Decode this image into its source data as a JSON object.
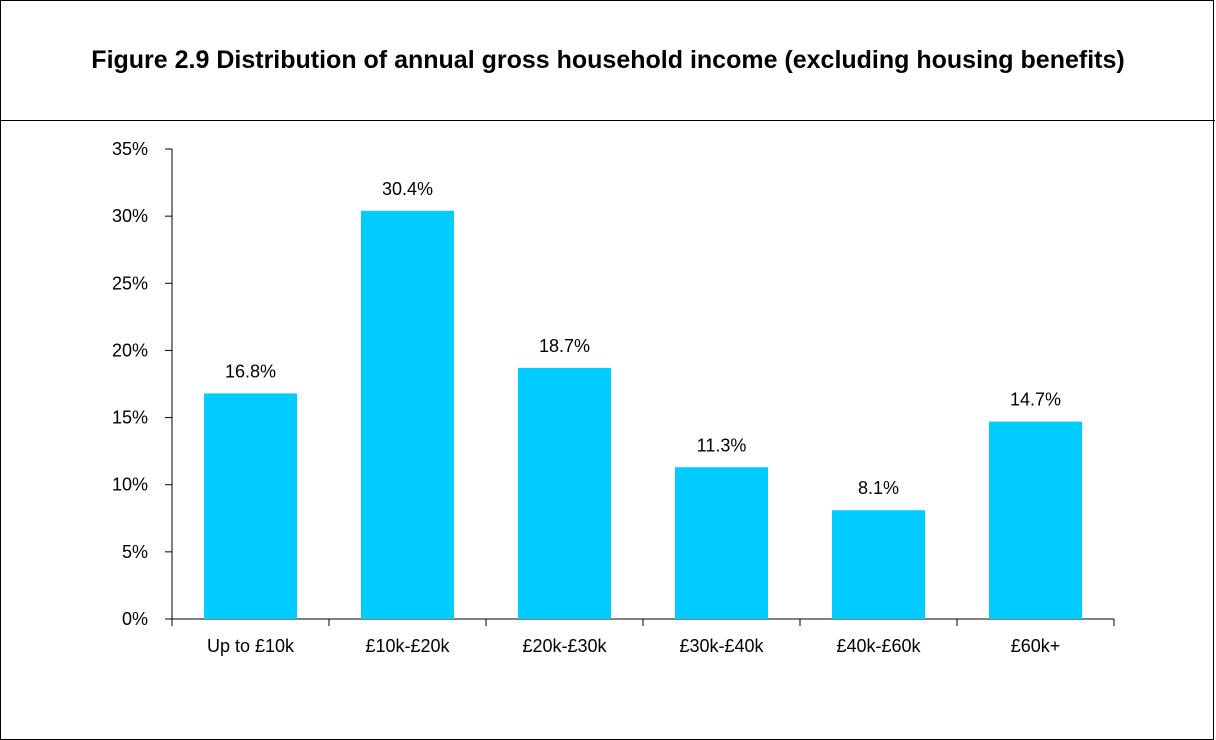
{
  "figure": {
    "title": "Figure 2.9 Distribution of annual gross household income (excluding housing benefits)"
  },
  "chart_data": {
    "type": "bar",
    "title": "Figure 2.9 Distribution of annual gross household income (excluding housing benefits)",
    "categories": [
      "Up to £10k",
      "£10k-£20k",
      "£20k-£30k",
      "£30k-£40k",
      "£40k-£60k",
      "£60k+"
    ],
    "values": [
      16.8,
      30.4,
      18.7,
      11.3,
      8.1,
      14.7
    ],
    "data_labels": [
      "16.8%",
      "30.4%",
      "18.7%",
      "11.3%",
      "8.1%",
      "14.7%"
    ],
    "y_ticks": [
      0,
      5,
      10,
      15,
      20,
      25,
      30,
      35
    ],
    "y_tick_labels": [
      "0%",
      "5%",
      "10%",
      "15%",
      "20%",
      "25%",
      "30%",
      "35%"
    ],
    "ylim": [
      0,
      35
    ],
    "xlabel": "",
    "ylabel": "",
    "grid": false,
    "legend": "none",
    "bar_color": "#00CCFF"
  }
}
